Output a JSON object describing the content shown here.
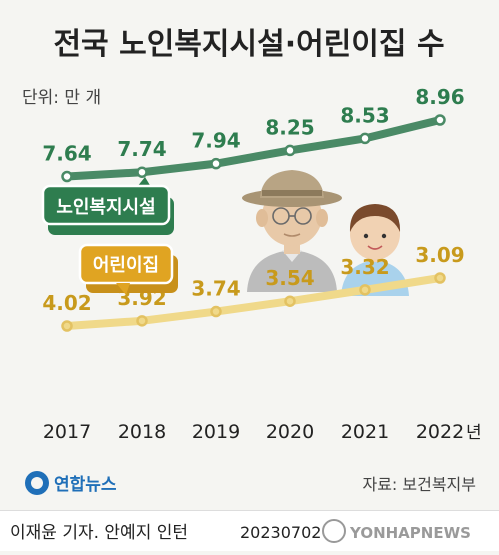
{
  "chart_data": {
    "type": "line",
    "title": "전국 노인복지시설·어린이집 수",
    "unit_label": "단위: 만 개",
    "categories": [
      "2017",
      "2018",
      "2019",
      "2020",
      "2021",
      "2022"
    ],
    "year_suffix": "년",
    "series": [
      {
        "name": "노인복지시설",
        "values": [
          7.64,
          7.74,
          7.94,
          8.25,
          8.53,
          8.96
        ],
        "color": "#4a8a66",
        "label_color": "#2e7d4f",
        "badge_color": "#2e7d4f"
      },
      {
        "name": "어린이집",
        "values": [
          4.02,
          3.92,
          3.74,
          3.54,
          3.32,
          3.09
        ],
        "color": "#f0d98a",
        "label_color": "#c89a1c",
        "badge_color": "#e0a422"
      }
    ],
    "value_labels": {
      "노인복지시설": [
        "7.64",
        "7.74",
        "7.94",
        "8.25",
        "8.53",
        "8.96"
      ],
      "어린이집": [
        "4.02",
        "3.92",
        "3.74",
        "3.54",
        "3.32",
        "3.09"
      ]
    },
    "legend": "inline-badges",
    "grid": false
  },
  "source": "자료: 보건복지부",
  "logo_text": "연합뉴스",
  "credit": "이재윤 기자. 안예지 인턴",
  "date": "20230702",
  "watermark": "YONHAPNEWS"
}
